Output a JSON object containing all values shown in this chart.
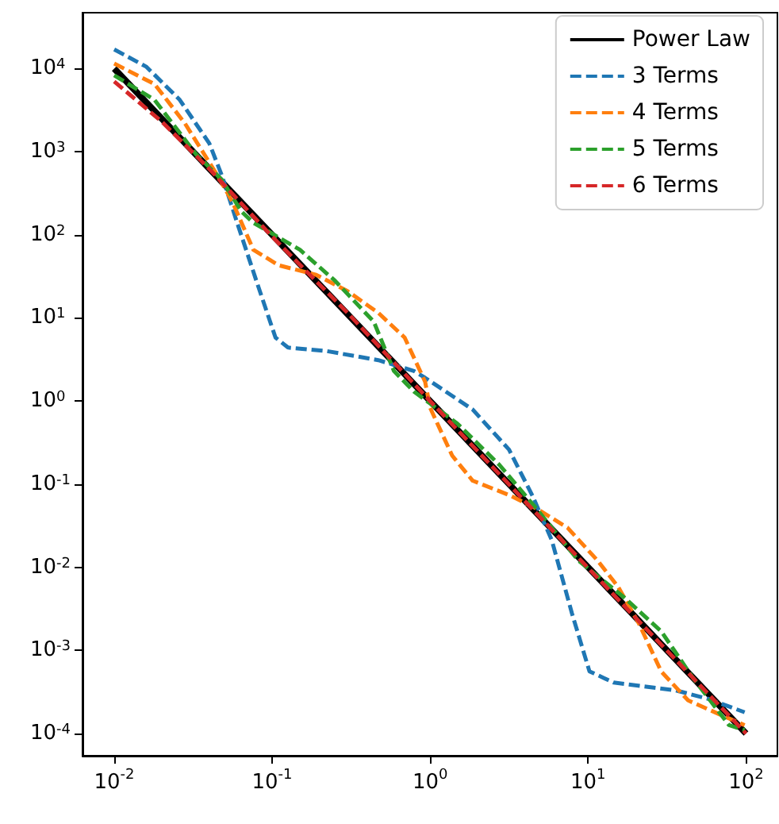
{
  "chart_data": {
    "type": "line",
    "log": "xy",
    "legend": "top right",
    "xlim": [
      0.0063,
      158
    ],
    "ylim": [
      5.4e-05,
      47000
    ],
    "xticks": [
      {
        "value": 0.01,
        "label": "10$^{-2}$"
      },
      {
        "value": 0.1,
        "label": "10$^{-1}$"
      },
      {
        "value": 1,
        "label": "10$^{0}$"
      },
      {
        "value": 10,
        "label": "10$^{1}$"
      },
      {
        "value": 100,
        "label": "10$^{2}$"
      }
    ],
    "yticks": [
      {
        "value": 0.0001,
        "label": "10$^{-4}$"
      },
      {
        "value": 0.001,
        "label": "10$^{-3}$"
      },
      {
        "value": 0.01,
        "label": "10$^{-2}$"
      },
      {
        "value": 0.1,
        "label": "10$^{-1}$"
      },
      {
        "value": 1,
        "label": "10$^{0}$"
      },
      {
        "value": 10,
        "label": "10$^{1}$"
      },
      {
        "value": 100,
        "label": "10$^{2}$"
      },
      {
        "value": 1000,
        "label": "10$^{3}$"
      },
      {
        "value": 10000,
        "label": "10$^{4}$"
      }
    ],
    "series": [
      {
        "name": "Power Law",
        "color": "#000000",
        "line_style": "solid",
        "x": [
          0.01,
          0.1,
          1,
          10,
          100
        ],
        "values": [
          10000,
          100,
          1,
          0.01,
          0.0001
        ]
      },
      {
        "name": "3 Terms",
        "color": "#1f77b4",
        "line_style": "dashed",
        "x": [
          0.01,
          0.016,
          0.026,
          0.04,
          0.048,
          0.06,
          0.081,
          0.105,
          0.126,
          0.22,
          0.47,
          0.79,
          0.93,
          1.86,
          3.16,
          4.47,
          5.9,
          7.9,
          10.2,
          14.5,
          36,
          58,
          98
        ],
        "values": [
          17000,
          10500,
          4200,
          1260,
          520,
          140,
          25,
          5.8,
          4.4,
          4.0,
          3.1,
          2.3,
          1.9,
          0.79,
          0.26,
          0.071,
          0.021,
          0.0028,
          0.00056,
          0.00041,
          0.00033,
          0.00026,
          0.00018
        ]
      },
      {
        "name": "4 Terms",
        "color": "#ff7f0e",
        "line_style": "dashed",
        "x": [
          0.01,
          0.018,
          0.028,
          0.045,
          0.056,
          0.076,
          0.11,
          0.19,
          0.3,
          0.47,
          0.69,
          0.93,
          1.0,
          1.38,
          1.86,
          3.16,
          4.7,
          7.4,
          11.5,
          15.5,
          21,
          29,
          43,
          68,
          98
        ],
        "values": [
          11500,
          6500,
          2200,
          520,
          250,
          66,
          43,
          33,
          21,
          11.5,
          5.8,
          1.7,
          0.83,
          0.22,
          0.11,
          0.074,
          0.051,
          0.03,
          0.012,
          0.0058,
          0.0021,
          0.00056,
          0.00025,
          0.00017,
          0.000126
        ]
      },
      {
        "name": "5 Terms",
        "color": "#2ca02c",
        "line_style": "dashed",
        "x": [
          0.01,
          0.018,
          0.033,
          0.048,
          0.064,
          0.076,
          0.15,
          0.25,
          0.44,
          0.59,
          0.79,
          1.48,
          2.75,
          4.7,
          8.7,
          17,
          29,
          46,
          78,
          98
        ],
        "values": [
          8300,
          4200,
          930,
          460,
          190,
          140,
          66,
          28,
          9,
          2.3,
          1.3,
          0.54,
          0.17,
          0.051,
          0.012,
          0.0043,
          0.0017,
          0.00047,
          0.000126,
          0.00011
        ]
      },
      {
        "name": "6 Terms",
        "color": "#d62728",
        "line_style": "dashed",
        "x": [
          0.01,
          0.02,
          0.04,
          0.1,
          0.3,
          1,
          3,
          10,
          30,
          100
        ],
        "values": [
          7000,
          2300,
          620,
          95,
          11.5,
          1.0,
          0.11,
          0.0098,
          0.0011,
          0.0001
        ]
      }
    ]
  }
}
